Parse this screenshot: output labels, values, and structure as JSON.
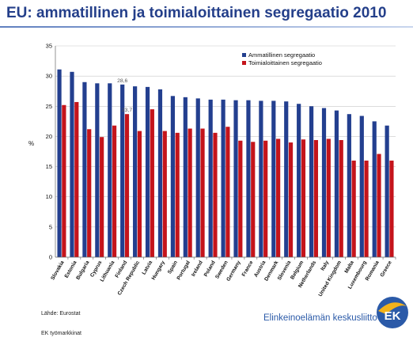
{
  "page": {
    "title": "EU: ammatillinen ja toimialoittainen segregaatio 2010",
    "source": "Lähde: Eurostat",
    "author": "EK työmarkkinat",
    "brand": "Elinkeinoelämän keskusliitto",
    "logo_text": "EK"
  },
  "colors": {
    "occupational": "#233f8f",
    "sectoral": "#c4141b",
    "title": "#243f8a",
    "brand": "#2b5aa8"
  },
  "chart_data": {
    "type": "bar",
    "title": "",
    "xlabel": "",
    "ylabel": "%",
    "ylim": [
      0,
      35
    ],
    "yticks": [
      0,
      5,
      10,
      15,
      20,
      25,
      30,
      35
    ],
    "legend_position": "top-right",
    "categories": [
      "Slovakia",
      "Estonia",
      "Bulgaria",
      "Cyprus",
      "Lithuania",
      "Finland",
      "Czech Republic",
      "Latvia",
      "Hungary",
      "Spain",
      "Portugal",
      "Ireland",
      "Poland",
      "Sweden",
      "Germany",
      "France",
      "Austria",
      "Denmark",
      "Slovenia",
      "Belgium",
      "Netherlands",
      "Italy",
      "United Kingdom",
      "Malta",
      "Luxembourg",
      "Romania",
      "Greece"
    ],
    "series": [
      {
        "name": "Ammatillinen segregaatio",
        "values": [
          31.1,
          30.7,
          29.0,
          28.8,
          28.8,
          28.6,
          28.3,
          28.2,
          27.8,
          26.7,
          26.5,
          26.3,
          26.1,
          26.1,
          26.0,
          26.0,
          25.9,
          25.9,
          25.8,
          25.4,
          25.0,
          24.7,
          24.3,
          23.7,
          23.4,
          22.5,
          21.8
        ]
      },
      {
        "name": "Toimialoittainen segregaatio",
        "values": [
          25.2,
          25.7,
          21.2,
          19.9,
          21.8,
          23.7,
          20.9,
          24.5,
          20.9,
          20.6,
          21.3,
          21.3,
          20.6,
          21.6,
          19.3,
          19.1,
          19.3,
          19.6,
          19.0,
          19.5,
          19.4,
          19.6,
          19.4,
          16.0,
          16.0,
          17.1,
          16.0
        ]
      }
    ],
    "data_labels": [
      {
        "series": 0,
        "category": "Finland",
        "text": "28,6"
      },
      {
        "series": 1,
        "category": "Finland",
        "text": "23,7"
      }
    ]
  }
}
